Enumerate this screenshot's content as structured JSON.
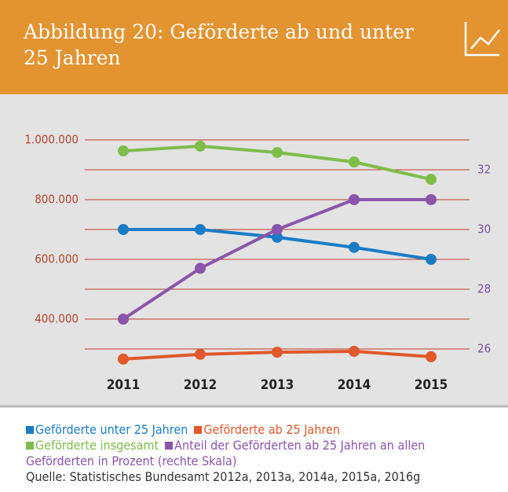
{
  "chart_data": {
    "type": "line",
    "title": "Abbildung 20: Geförderte ab und unter 25 Jahren",
    "categories": [
      "2011",
      "2012",
      "2013",
      "2014",
      "2015"
    ],
    "series": [
      {
        "name": "Geförderte unter 25 Jahren",
        "color": "#1b7cc6",
        "values": [
          700000,
          700000,
          674000,
          640000,
          600000
        ]
      },
      {
        "name": "Geförderte ab 25 Jahren",
        "color": "#e0582b",
        "values": [
          266000,
          282000,
          289000,
          292000,
          274000
        ]
      },
      {
        "name": "Geförderte insgesamt",
        "color": "#7fbd4b",
        "values": [
          963000,
          979000,
          958000,
          926000,
          868000
        ]
      },
      {
        "name": "Anteil der Geförderten ab 25 Jahren an allen Geförderten in Prozent (rechte Skala)",
        "color": "#8a55aa",
        "axis": "y2",
        "values": [
          27,
          28.7,
          30,
          31,
          31
        ]
      }
    ],
    "ylim": [
      300000,
      1000000
    ],
    "yticks": [
      {
        "value": 400000,
        "label": "400.000"
      },
      {
        "value": 600000,
        "label": "600.000"
      },
      {
        "value": 800000,
        "label": "800.000"
      },
      {
        "value": 1000000,
        "label": "1.000.000"
      }
    ],
    "y2lim": [
      26,
      33
    ],
    "y2ticks": [
      26,
      28,
      30,
      32
    ],
    "grid": true,
    "source": "Quelle: Statistisches Bundesamt 2012a, 2013a, 2014a, 2015a, 2016g"
  }
}
